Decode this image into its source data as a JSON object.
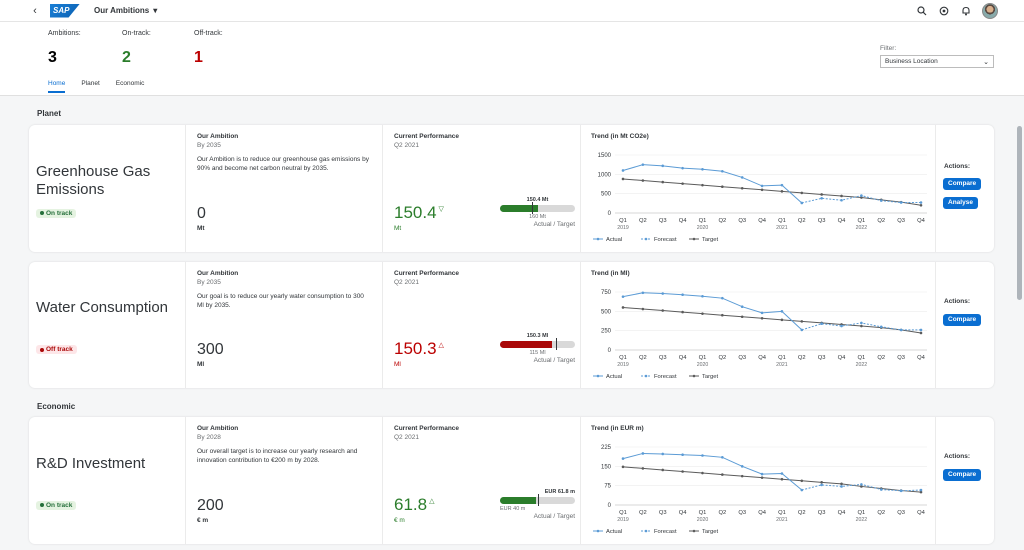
{
  "shell": {
    "app_title": "Our Ambitions",
    "logo": "SAP"
  },
  "header": {
    "kpis": [
      {
        "label": "Ambitions:",
        "value": "3",
        "color": "#000000"
      },
      {
        "label": "On-track:",
        "value": "2",
        "color": "#2b7d2b"
      },
      {
        "label": "Off-track:",
        "value": "1",
        "color": "#bb0000"
      }
    ],
    "tabs": [
      "Home",
      "Planet",
      "Economic"
    ],
    "filter_label": "Filter:",
    "filter_value": "Business Location"
  },
  "sections": {
    "planet": "Planet",
    "economic": "Economic"
  },
  "common": {
    "ambition_title": "Our Ambition",
    "perf_title": "Current Performance",
    "perf_period": "Q2 2021",
    "actual_target": "Actual / Target",
    "actions": "Actions:",
    "compare": "Compare",
    "analyse": "Analyse",
    "legend": [
      "Actual",
      "Forecast",
      "Target"
    ],
    "quarters": [
      "Q1",
      "Q2",
      "Q3",
      "Q4",
      "Q1",
      "Q2",
      "Q3",
      "Q4",
      "Q1",
      "Q2",
      "Q3",
      "Q4",
      "Q1",
      "Q2",
      "Q3",
      "Q4"
    ],
    "years": [
      "2019",
      "2020",
      "2021",
      "2022"
    ]
  },
  "cards": [
    {
      "name": "Greenhouse Gas Emissions",
      "status": "On track",
      "ambition_by": "By 2035",
      "ambition_text": "Our Ambition is to reduce our greenhouse gas emissions by 90% and become net carbon neutral by 2035.",
      "ambition_value": "0",
      "ambition_unit": "Mt",
      "perf_value": "150.4",
      "perf_unit": "Mt",
      "bar_actual_label": "150.4 Mt",
      "bar_target_label": "160 Mt",
      "trend_title": "Trend (in Mt CO2e)",
      "chart_data": {
        "type": "line",
        "y_ticks": [
          "1500",
          "1000",
          "500",
          "0"
        ],
        "ylim": [
          0,
          1500
        ],
        "series": [
          {
            "name": "Actual",
            "values": [
              1100,
              1250,
              1220,
              1160,
              1130,
              1080,
              920,
              700,
              720,
              260,
              380,
              330,
              450,
              320,
              270,
              270
            ]
          },
          {
            "name": "Target",
            "values": [
              880,
              840,
              800,
              760,
              720,
              680,
              640,
              600,
              560,
              520,
              480,
              440,
              400,
              340,
              280,
              200
            ]
          }
        ]
      }
    },
    {
      "name": "Water Consumption",
      "status": "Off track",
      "ambition_by": "By 2035",
      "ambition_text": "Our goal is to reduce our yearly water consumption to 300 Ml by 2035.",
      "ambition_value": "300",
      "ambition_unit": "Ml",
      "perf_value": "150.3",
      "perf_unit": "Ml",
      "bar_actual_label": "150.3 Ml",
      "bar_target_label": "115 Ml",
      "trend_title": "Trend (in Ml)",
      "chart_data": {
        "type": "line",
        "y_ticks": [
          "750",
          "500",
          "250",
          "0"
        ],
        "ylim": [
          0,
          750
        ],
        "series": [
          {
            "name": "Actual",
            "values": [
              690,
              740,
              730,
              715,
              695,
              670,
              560,
              480,
              500,
              260,
              340,
              310,
              350,
              300,
              260,
              260
            ]
          },
          {
            "name": "Target",
            "values": [
              550,
              530,
              510,
              490,
              470,
              450,
              430,
              410,
              390,
              370,
              350,
              330,
              310,
              290,
              260,
              220
            ]
          }
        ]
      }
    },
    {
      "name": "R&D Investment",
      "status": "On track",
      "ambition_by": "By 2028",
      "ambition_text": "Our overall target is to increase our yearly research and innovation contribution to €200 m by 2028.",
      "ambition_value": "200",
      "ambition_unit": "€ m",
      "perf_value": "61.8",
      "perf_unit": "€ m",
      "bar_actual_label": "EUR 61.8 m",
      "bar_target_label": "EUR 40 m",
      "trend_title": "Trend (in EUR m)",
      "chart_data": {
        "type": "line",
        "y_ticks": [
          "225",
          "150",
          "75",
          "0"
        ],
        "ylim": [
          0,
          225
        ],
        "series": [
          {
            "name": "Actual",
            "values": [
              180,
              200,
              198,
              195,
              192,
              185,
              150,
              120,
              122,
              58,
              78,
              72,
              80,
              60,
              55,
              58
            ]
          },
          {
            "name": "Target",
            "values": [
              148,
              142,
              136,
              130,
              124,
              118,
              112,
              106,
              100,
              94,
              88,
              82,
              72,
              64,
              56,
              50
            ]
          }
        ]
      }
    }
  ]
}
